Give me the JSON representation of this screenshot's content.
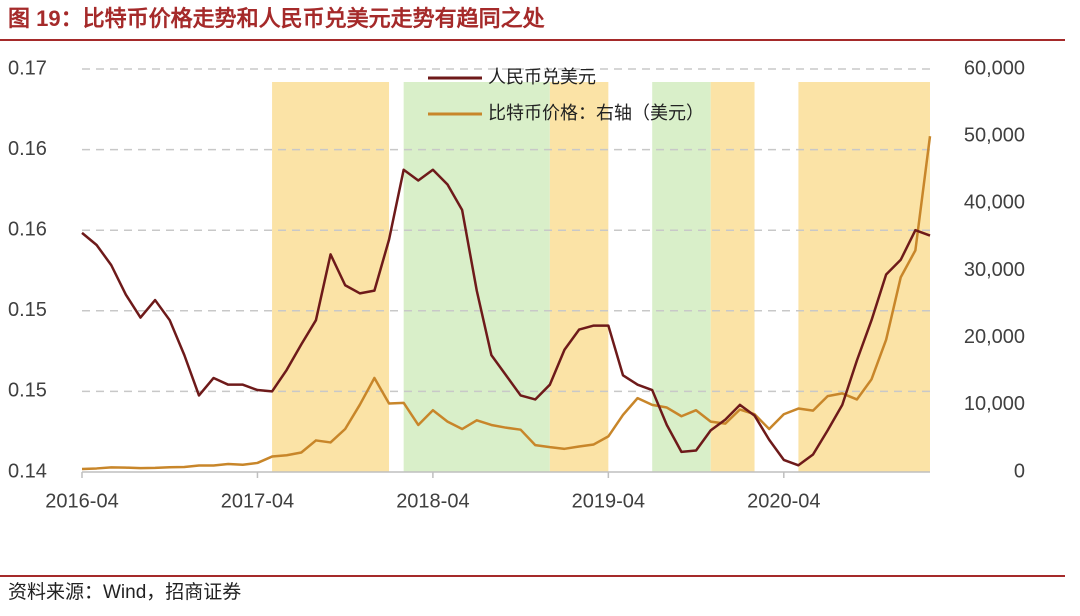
{
  "chart_data": {
    "type": "line",
    "title": "图 19：比特币价格走势和人民币兑美元走势有趋同之处",
    "source": "资料来源：Wind，招商证券",
    "x": [
      "2016-04",
      "2016-05",
      "2016-06",
      "2016-07",
      "2016-08",
      "2016-09",
      "2016-10",
      "2016-11",
      "2016-12",
      "2017-01",
      "2017-02",
      "2017-03",
      "2017-04",
      "2017-05",
      "2017-06",
      "2017-07",
      "2017-08",
      "2017-09",
      "2017-10",
      "2017-11",
      "2017-12",
      "2018-01",
      "2018-02",
      "2018-03",
      "2018-04",
      "2018-05",
      "2018-06",
      "2018-07",
      "2018-08",
      "2018-09",
      "2018-10",
      "2018-11",
      "2018-12",
      "2019-01",
      "2019-02",
      "2019-03",
      "2019-04",
      "2019-05",
      "2019-06",
      "2019-07",
      "2019-08",
      "2019-09",
      "2019-10",
      "2019-11",
      "2019-12",
      "2020-01",
      "2020-02",
      "2020-03",
      "2020-04",
      "2020-05",
      "2020-06",
      "2020-07",
      "2020-08",
      "2020-09",
      "2020-10",
      "2020-11",
      "2020-12",
      "2021-01",
      "2021-02"
    ],
    "xlim": [
      "2016-04",
      "2021-02"
    ],
    "xticks": [
      "2016-04",
      "2017-04",
      "2018-04",
      "2019-04",
      "2020-04"
    ],
    "series": [
      {
        "name": "人民币兑美元",
        "color": "#6e1a1a",
        "axis": "y",
        "values": [
          0.1578,
          0.1569,
          0.1554,
          0.1532,
          0.1515,
          0.1528,
          0.1513,
          0.1487,
          0.1457,
          0.147,
          0.1465,
          0.1465,
          0.1461,
          0.146,
          0.1476,
          0.1495,
          0.1513,
          0.1562,
          0.1539,
          0.1533,
          0.1535,
          0.1573,
          0.1625,
          0.1617,
          0.1625,
          0.1614,
          0.1595,
          0.1535,
          0.1487,
          0.1472,
          0.1457,
          0.1454,
          0.1465,
          0.1491,
          0.1506,
          0.1509,
          0.1509,
          0.1472,
          0.1465,
          0.1461,
          0.1435,
          0.1415,
          0.1416,
          0.1431,
          0.1439,
          0.145,
          0.1442,
          0.1424,
          0.1409,
          0.1405,
          0.1413,
          0.1431,
          0.145,
          0.1483,
          0.1513,
          0.1547,
          0.1558,
          0.158,
          0.1576
        ]
      },
      {
        "name": "比特币价格：右轴（美元）",
        "color": "#c8862a",
        "axis": "y2",
        "values": [
          450,
          530,
          680,
          650,
          580,
          610,
          700,
          740,
          960,
          970,
          1190,
          1080,
          1350,
          2300,
          2500,
          2900,
          4700,
          4400,
          6400,
          10000,
          14000,
          10200,
          10300,
          7000,
          9200,
          7500,
          6400,
          7700,
          7000,
          6600,
          6300,
          4000,
          3700,
          3450,
          3800,
          4100,
          5300,
          8500,
          11000,
          10000,
          9600,
          8300,
          9200,
          7500,
          7200,
          9300,
          8600,
          6400,
          8600,
          9450,
          9140,
          11300,
          11700,
          10800,
          13800,
          19700,
          29000,
          33000,
          50000
        ]
      }
    ],
    "ylim": [
      0.14,
      0.17
    ],
    "yticks": [
      {
        "value": 0.14,
        "label": "0.14"
      },
      {
        "value": 0.146,
        "label": "0.15"
      },
      {
        "value": 0.152,
        "label": "0.15"
      },
      {
        "value": 0.158,
        "label": "0.16"
      },
      {
        "value": 0.164,
        "label": "0.16"
      },
      0.17
    ],
    "y2lim": [
      0,
      60000
    ],
    "y2ticks": [
      0,
      {
        "value": 10000,
        "label": "10,000"
      },
      {
        "value": 20000,
        "label": "20,000"
      },
      {
        "value": 30000,
        "label": "30,000"
      },
      {
        "value": 40000,
        "label": "40,000"
      },
      {
        "value": 50000,
        "label": "50,000"
      },
      {
        "value": 60000,
        "label": "60,000"
      }
    ],
    "shaded_periods": [
      {
        "start": "2017-05",
        "end": "2018-01",
        "color": "#fbe3a6"
      },
      {
        "start": "2018-02",
        "end": "2018-12",
        "color": "#d9efc9"
      },
      {
        "start": "2018-12",
        "end": "2019-04",
        "color": "#fbe3a6"
      },
      {
        "start": "2019-07",
        "end": "2019-11",
        "color": "#d9efc9"
      },
      {
        "start": "2019-11",
        "end": "2020-02",
        "color": "#fbe3a6"
      },
      {
        "start": "2020-05",
        "end": "2021-02",
        "color": "#fbe3a6"
      }
    ],
    "grid": true,
    "legend": "top"
  }
}
